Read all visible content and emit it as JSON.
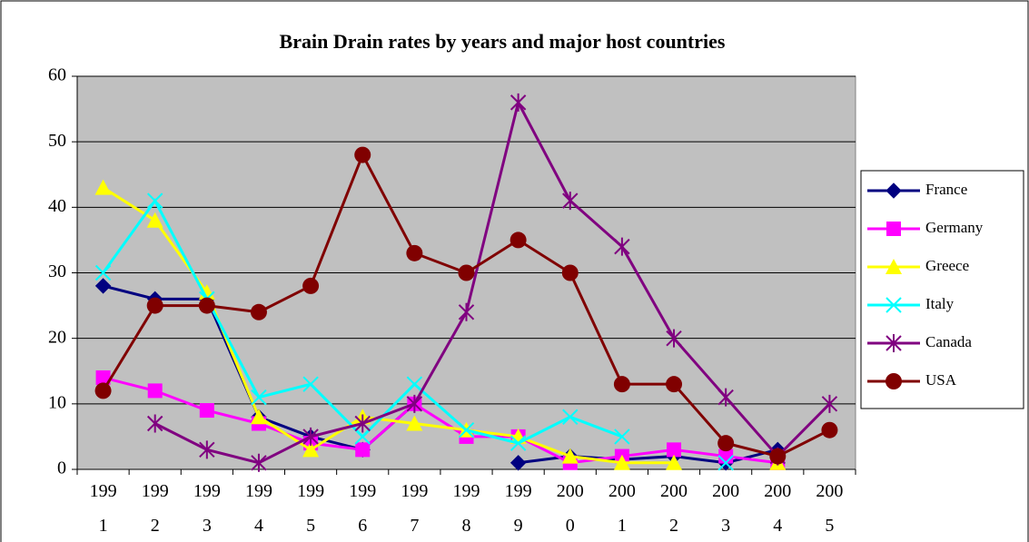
{
  "chart_data": {
    "type": "line",
    "title": "Brain Drain rates by years and major host countries",
    "categories": [
      "1991",
      "1992",
      "1993",
      "1994",
      "1995",
      "1996",
      "1997",
      "1998",
      "1999",
      "2000",
      "2001",
      "2002",
      "2003",
      "2004",
      "2005"
    ],
    "ylim": [
      0,
      60
    ],
    "yticks": [
      0,
      10,
      20,
      30,
      40,
      50,
      60
    ],
    "grid": true,
    "legend": "right",
    "series": [
      {
        "name": "France",
        "color": "#000080",
        "marker": "diamond",
        "values": [
          28,
          26,
          26,
          8,
          5,
          3,
          10,
          null,
          1,
          2,
          1.5,
          2,
          1,
          3,
          null
        ]
      },
      {
        "name": "Germany",
        "color": "#ff00ff",
        "marker": "square",
        "values": [
          14,
          12,
          9,
          7,
          4,
          3,
          10,
          5,
          5,
          1,
          2,
          3,
          2,
          1,
          null
        ]
      },
      {
        "name": "Greece",
        "color": "#ffff00",
        "marker": "triangle",
        "values": [
          43,
          38,
          27,
          8,
          3,
          8,
          7,
          6,
          5,
          2,
          1,
          1,
          null,
          1,
          null
        ]
      },
      {
        "name": "Italy",
        "color": "#00ffff",
        "marker": "x",
        "values": [
          30,
          41,
          26,
          11,
          13,
          5,
          13,
          6,
          4,
          8,
          5,
          null,
          1,
          null,
          null
        ]
      },
      {
        "name": "Canada",
        "color": "#800080",
        "marker": "star",
        "values": [
          null,
          7,
          3,
          1,
          5,
          7,
          10,
          24,
          56,
          41,
          34,
          20,
          11,
          2,
          10
        ]
      },
      {
        "name": "USA",
        "color": "#800000",
        "marker": "circle",
        "values": [
          12,
          25,
          25,
          24,
          28,
          48,
          33,
          30,
          35,
          30,
          13,
          13,
          4,
          2,
          6
        ]
      }
    ]
  }
}
